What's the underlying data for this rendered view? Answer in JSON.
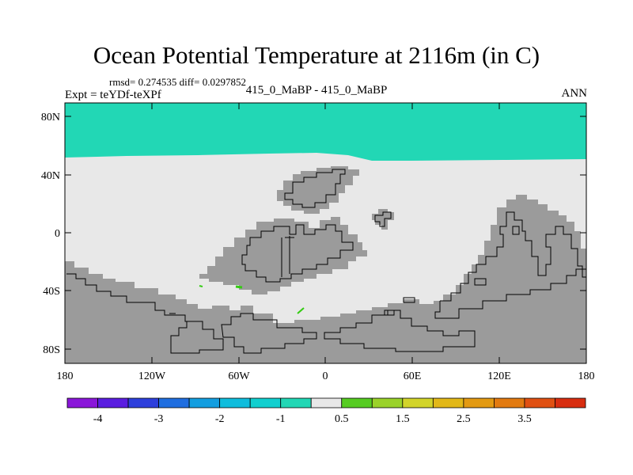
{
  "title": "Ocean Potential Temperature at 2116m (in C)",
  "stats": "rmsd= 0.274535 diff= 0.0297852",
  "left_label": "Expt = teYDf-teXPf",
  "center_label": "415_0_MaBP - 415_0_MaBP",
  "right_label": "ANN",
  "chart_data": {
    "type": "heatmap",
    "x_ticks": [
      "180",
      "120W",
      "60W",
      "0",
      "60E",
      "120E",
      "180"
    ],
    "y_ticks": [
      "80N",
      "40N",
      "0",
      "40S",
      "80S"
    ],
    "field_regions": [
      {
        "region": "north of ~50N",
        "value_bin": "-1 to -0.5",
        "color": "#22d7b5"
      },
      {
        "region": "most open ocean",
        "value_bin": "-0.5 to 0.5",
        "color": "#e8e8e8"
      },
      {
        "region": "small patches near 50W 40S and 15W 55S",
        "value_bin": "0.5 to 1",
        "color": "#33cc11"
      }
    ],
    "land_color": "#9b9b9b",
    "colorbar": {
      "colors": [
        "#8a16d9",
        "#5a1de0",
        "#2d3fdc",
        "#1f6ee0",
        "#139ee0",
        "#0fbddd",
        "#11cfcf",
        "#22d7b5",
        "#e8e8e8",
        "#56cc22",
        "#9ad22a",
        "#d2d42a",
        "#e2b818",
        "#e39a12",
        "#e27a10",
        "#e05012",
        "#d82d10"
      ],
      "labels": [
        "-4",
        "-3",
        "-2",
        "-1",
        "0.5",
        "1.5",
        "2.5",
        "3.5"
      ]
    }
  }
}
